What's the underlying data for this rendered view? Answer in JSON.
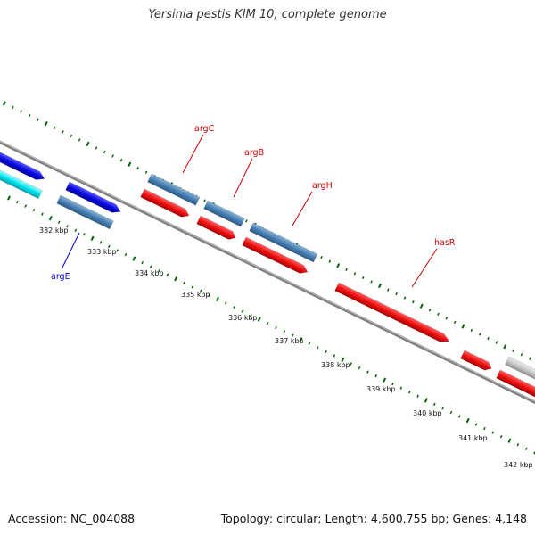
{
  "title": "Yersinia pestis KIM 10, complete genome",
  "accession": "Accession: NC_004088",
  "summary": "Topology: circular; Length: 4,600,755 bp; Genes: 4,148",
  "scale_labels": [
    "332 kbp",
    "333 kbp",
    "334 kbp",
    "335 kbp",
    "336 kbp",
    "337 kbp",
    "338 kbp",
    "339 kbp",
    "340 kbp",
    "341 kbp",
    "342 kbp"
  ],
  "gene_labels": [
    {
      "name": "argE",
      "color": "#0000cc"
    },
    {
      "name": "argC",
      "color": "#cc0000"
    },
    {
      "name": "argB",
      "color": "#cc0000"
    },
    {
      "name": "argH",
      "color": "#cc0000"
    },
    {
      "name": "hasR",
      "color": "#cc0000"
    }
  ],
  "colors": {
    "backbone": "#808080",
    "tick": "#006600",
    "cds_forward": "#ee1111",
    "gene_steelblue": "#4a80b4",
    "gene_blue": "#0a0ae0",
    "gene_cyan": "#00e5ee",
    "gene_gray": "#c8c8c8"
  }
}
